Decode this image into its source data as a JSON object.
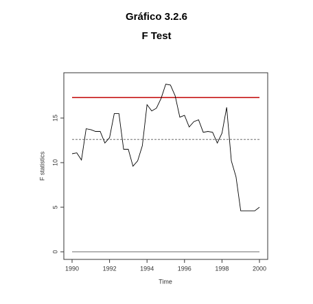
{
  "chart_data": {
    "type": "line",
    "title": "Gráfico 3.2.6",
    "subtitle": "F Test",
    "x_label": "Time",
    "y_label": "F statistics",
    "x": [
      1990,
      1990.25,
      1990.5,
      1990.75,
      1991,
      1991.25,
      1991.5,
      1991.75,
      1992,
      1992.25,
      1992.5,
      1992.75,
      1993,
      1993.25,
      1993.5,
      1993.75,
      1994,
      1994.25,
      1994.5,
      1994.75,
      1995,
      1995.25,
      1995.5,
      1995.75,
      1996,
      1996.25,
      1996.5,
      1996.75,
      1997,
      1997.25,
      1997.5,
      1997.75,
      1998,
      1998.25,
      1998.5,
      1998.75,
      1999,
      1999.25,
      1999.5,
      1999.75,
      2000
    ],
    "series": [
      {
        "name": "F statistics",
        "color": "#000000",
        "values": [
          11.0,
          11.1,
          10.3,
          13.8,
          13.7,
          13.5,
          13.5,
          12.2,
          12.8,
          15.5,
          15.5,
          11.5,
          11.5,
          9.6,
          10.2,
          11.9,
          16.5,
          15.8,
          16.1,
          17.2,
          18.8,
          18.7,
          17.5,
          15.1,
          15.3,
          14.0,
          14.6,
          14.8,
          13.4,
          13.5,
          13.4,
          12.2,
          13.3,
          16.2,
          10.2,
          8.4,
          4.6,
          4.6,
          4.6,
          4.6,
          5.0
        ]
      }
    ],
    "reference_lines": [
      {
        "value": 17.3,
        "color": "#c00000",
        "style": "solid"
      },
      {
        "value": 12.6,
        "color": "#555555",
        "style": "dashed"
      },
      {
        "value": 0,
        "color": "#555555",
        "style": "solid"
      }
    ],
    "xlim": [
      1989.56,
      2000.44
    ],
    "ylim": [
      -0.85,
      20.08
    ],
    "xticks": [
      1990,
      1992,
      1994,
      1996,
      1998,
      2000
    ],
    "yticks": [
      0,
      5,
      10,
      15
    ]
  }
}
